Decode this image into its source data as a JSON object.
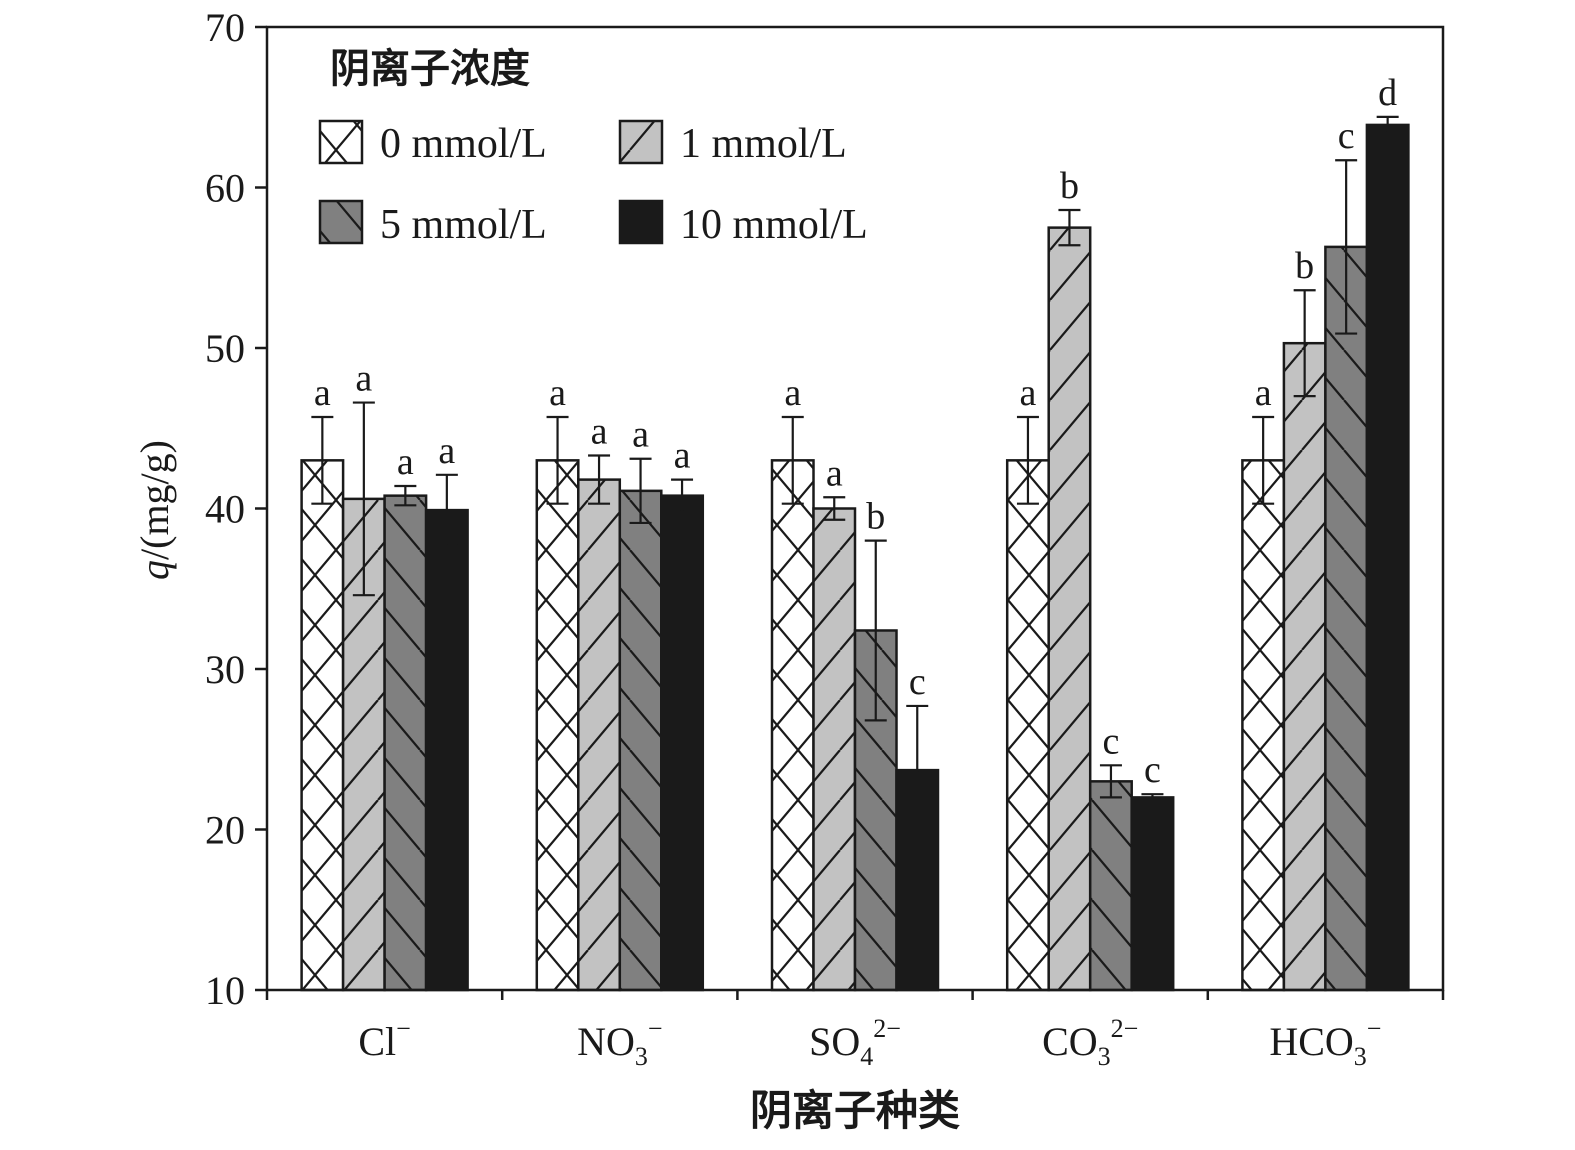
{
  "chart_data": {
    "type": "bar",
    "title": "",
    "xlabel": "阴离子种类",
    "ylabel": {
      "var": "q",
      "unit": "/(mg/g)"
    },
    "ylim": [
      10,
      70
    ],
    "yticks": [
      10,
      20,
      30,
      40,
      50,
      60,
      70
    ],
    "grid": false,
    "legend_title": "阴离子浓度",
    "legend_position": "top-left",
    "categories": [
      {
        "base": "Cl",
        "sub": "",
        "sup": "−"
      },
      {
        "base": "NO",
        "sub": "3",
        "sup": "−"
      },
      {
        "base": "SO",
        "sub": "4",
        "sup": "2−"
      },
      {
        "base": "CO",
        "sub": "3",
        "sup": "2−"
      },
      {
        "base": "HCO",
        "sub": "3",
        "sup": "−"
      }
    ],
    "series": [
      {
        "name": "0 mmol/L",
        "pattern": "cross",
        "fill": "#ffffff",
        "values": [
          43.0,
          43.0,
          43.0,
          43.0,
          43.0
        ],
        "errors": [
          2.7,
          2.7,
          2.7,
          2.7,
          2.7
        ],
        "labels": [
          "a",
          "a",
          "a",
          "a",
          "a"
        ]
      },
      {
        "name": "1 mmol/L",
        "pattern": "diag-up",
        "fill": "#c2c2c2",
        "values": [
          40.6,
          41.8,
          40.0,
          57.5,
          50.3
        ],
        "errors": [
          6.0,
          1.5,
          0.7,
          1.1,
          3.3
        ],
        "labels": [
          "a",
          "a",
          "a",
          "b",
          "b"
        ]
      },
      {
        "name": "5 mmol/L",
        "pattern": "diag-down",
        "fill": "#808080",
        "values": [
          40.8,
          41.1,
          32.4,
          23.0,
          56.3
        ],
        "errors": [
          0.6,
          2.0,
          5.6,
          1.0,
          5.4
        ],
        "labels": [
          "a",
          "a",
          "b",
          "c",
          "c"
        ]
      },
      {
        "name": "10 mmol/L",
        "pattern": "solid",
        "fill": "#1a1a1a",
        "values": [
          39.9,
          40.8,
          23.7,
          22.0,
          63.9
        ],
        "errors": [
          2.2,
          1.0,
          4.0,
          0.2,
          0.5
        ],
        "labels": [
          "a",
          "a",
          "c",
          "c",
          "d"
        ]
      }
    ]
  }
}
